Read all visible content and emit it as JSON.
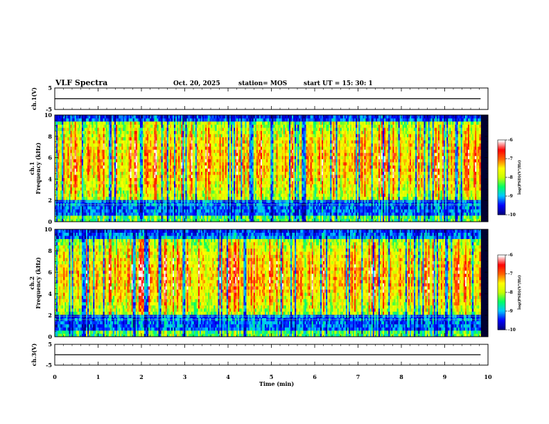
{
  "header": {
    "title": "VLF Spectra",
    "date": "Oct. 20, 2025",
    "station": "station= MOS",
    "start_ut": "start  UT =   15: 30: 1"
  },
  "chart_data": [
    {
      "type": "line",
      "name": "ch1-waveform",
      "ylabel": "ch.1(V)",
      "ylim": [
        -5,
        5
      ],
      "yticks": [
        "5",
        "-5"
      ],
      "x": [
        0,
        9.83
      ],
      "y": [
        0,
        0
      ]
    },
    {
      "type": "heatmap",
      "name": "ch1-spectrogram",
      "ylabel": [
        "ch.1",
        "Frequency (kHz)"
      ],
      "ylim": [
        0,
        10
      ],
      "yticks": [
        "0",
        "2",
        "4",
        "6",
        "8",
        "10"
      ],
      "xlim": [
        0,
        10
      ],
      "data_end_min": 9.83,
      "band_kHz": [
        2.0,
        9.3
      ],
      "colorbar": {
        "label": "log(PSD)(V²/Hz)",
        "range": [
          -10,
          -6
        ],
        "ticks": [
          "-6",
          "-7",
          "-8",
          "-9",
          "-10"
        ]
      }
    },
    {
      "type": "heatmap",
      "name": "ch2-spectrogram",
      "ylabel": [
        "ch.2",
        "Frequency (kHz)"
      ],
      "ylim": [
        0,
        10
      ],
      "yticks": [
        "0",
        "2",
        "4",
        "6",
        "8",
        "10"
      ],
      "xlim": [
        0,
        10
      ],
      "data_end_min": 9.83,
      "band_kHz": [
        2.2,
        9.0
      ],
      "colorbar": {
        "label": "log(PSD)(V²/Hz)",
        "range": [
          -10,
          -6
        ],
        "ticks": [
          "-6",
          "-7",
          "-8",
          "-9",
          "-10"
        ]
      }
    },
    {
      "type": "line",
      "name": "ch3-waveform",
      "ylabel": "ch.3(V)",
      "ylim": [
        -5,
        5
      ],
      "yticks": [
        "5",
        "-5"
      ],
      "x": [
        0,
        9.83
      ],
      "y": [
        0,
        0
      ]
    }
  ],
  "xaxis": {
    "label": "Time  (min)",
    "range": [
      0,
      10
    ],
    "ticks": [
      "0",
      "1",
      "2",
      "3",
      "4",
      "5",
      "6",
      "7",
      "8",
      "9",
      "10"
    ]
  },
  "colors": {
    "colormap": [
      "#000080",
      "#0000ff",
      "#00c8ff",
      "#00ff64",
      "#c8ff00",
      "#ffff00",
      "#ff6400",
      "#ff0000",
      "#ffffff"
    ],
    "text": "#000000"
  }
}
